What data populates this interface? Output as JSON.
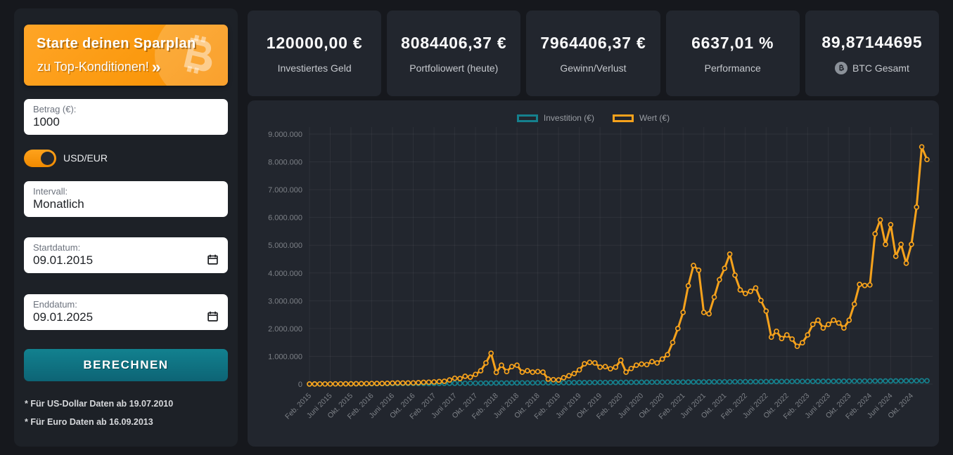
{
  "sidebar": {
    "banner": {
      "line1": "Starte deinen Sparplan",
      "line2": "zu Top-Konditionen!",
      "arrow": "»"
    },
    "amount": {
      "label": "Betrag (€):",
      "value": "1000"
    },
    "currency_toggle": {
      "label": "USD/EUR",
      "state": "EUR"
    },
    "interval": {
      "label": "Intervall:",
      "value": "Monatlich"
    },
    "start_date": {
      "label": "Startdatum:",
      "value": "09.01.2015"
    },
    "end_date": {
      "label": "Enddatum:",
      "value": "09.01.2025"
    },
    "calculate_button": "BERECHNEN",
    "footnote_usd": "* Für US-Dollar Daten ab 19.07.2010",
    "footnote_eur": "* Für Euro Daten ab 16.09.2013"
  },
  "stats": [
    {
      "value": "120000,00 €",
      "label": "Investiertes Geld"
    },
    {
      "value": "8084406,37 €",
      "label": "Portfoliowert (heute)"
    },
    {
      "value": "7964406,37 €",
      "label": "Gewinn/Verlust"
    },
    {
      "value": "6637,01 %",
      "label": "Performance"
    },
    {
      "value": "89,87144695",
      "label": "BTC Gesamt",
      "icon": "bitcoin-badge"
    }
  ],
  "colors": {
    "accent_orange": "#f6a21c",
    "accent_teal": "#15808d",
    "panel_bg": "#22262e",
    "page_bg": "#16181d"
  },
  "chart_data": {
    "type": "line",
    "title": "",
    "legend_position": "top",
    "grid": true,
    "y_max": 9000000,
    "y_tick_labels": [
      "0",
      "1.000.000",
      "2.000.000",
      "3.000.000",
      "4.000.000",
      "5.000.000",
      "6.000.000",
      "7.000.000",
      "8.000.000",
      "9.000.000"
    ],
    "x_tick_every": 4,
    "x_tick_labels": [
      "Feb. 2015",
      "Juni 2015",
      "Okt. 2015",
      "Feb. 2016",
      "Juni 2016",
      "Okt. 2016",
      "Feb. 2017",
      "Juni 2017",
      "Okt. 2017",
      "Feb. 2018",
      "Juni 2018",
      "Okt. 2018",
      "Feb. 2019",
      "Juni 2019",
      "Okt. 2019",
      "Feb. 2020",
      "Juni 2020",
      "Okt. 2020",
      "Feb. 2021",
      "Juni 2021",
      "Okt. 2021",
      "Feb. 2022",
      "Juni 2022",
      "Okt. 2022",
      "Feb. 2023",
      "Juni 2023",
      "Okt. 2023",
      "Feb. 2024",
      "Juni 2024",
      "Okt. 2024"
    ],
    "legend": [
      {
        "name": "Investition (€)",
        "color": "#15808d"
      },
      {
        "name": "Wert (€)",
        "color": "#f6a21c"
      }
    ],
    "series": [
      {
        "name": "Investition (€)",
        "color": "#15808d",
        "values": [
          1000,
          2000,
          3000,
          4000,
          5000,
          6000,
          7000,
          8000,
          9000,
          10000,
          11000,
          12000,
          13000,
          14000,
          15000,
          16000,
          17000,
          18000,
          19000,
          20000,
          21000,
          22000,
          23000,
          24000,
          25000,
          26000,
          27000,
          28000,
          29000,
          30000,
          31000,
          32000,
          33000,
          34000,
          35000,
          36000,
          37000,
          38000,
          39000,
          40000,
          41000,
          42000,
          43000,
          44000,
          45000,
          46000,
          47000,
          48000,
          49000,
          50000,
          51000,
          52000,
          53000,
          54000,
          55000,
          56000,
          57000,
          58000,
          59000,
          60000,
          61000,
          62000,
          63000,
          64000,
          65000,
          66000,
          67000,
          68000,
          69000,
          70000,
          71000,
          72000,
          73000,
          74000,
          75000,
          76000,
          77000,
          78000,
          79000,
          80000,
          81000,
          82000,
          83000,
          84000,
          85000,
          86000,
          87000,
          88000,
          89000,
          90000,
          91000,
          92000,
          93000,
          94000,
          95000,
          96000,
          97000,
          98000,
          99000,
          100000,
          101000,
          102000,
          103000,
          104000,
          105000,
          106000,
          107000,
          108000,
          109000,
          110000,
          111000,
          112000,
          113000,
          114000,
          115000,
          116000,
          117000,
          118000,
          119000,
          120000
        ]
      },
      {
        "name": "Wert (€)",
        "color": "#f6a21c",
        "values": [
          2000,
          3000,
          4000,
          5000,
          6000,
          7000,
          8000,
          9000,
          11000,
          13000,
          16000,
          18000,
          20000,
          22000,
          24000,
          27000,
          35000,
          40000,
          38000,
          41000,
          44000,
          50000,
          62000,
          68000,
          75000,
          90000,
          100000,
          150000,
          210000,
          200000,
          280000,
          250000,
          350000,
          480000,
          760000,
          1110000,
          420000,
          680000,
          450000,
          630000,
          680000,
          430000,
          480000,
          430000,
          450000,
          430000,
          180000,
          160000,
          150000,
          230000,
          300000,
          380000,
          510000,
          730000,
          780000,
          760000,
          610000,
          630000,
          550000,
          610000,
          860000,
          430000,
          560000,
          680000,
          720000,
          700000,
          810000,
          760000,
          900000,
          1060000,
          1500000,
          2000000,
          2580000,
          3540000,
          4270000,
          4100000,
          2580000,
          2530000,
          3130000,
          3760000,
          4170000,
          4680000,
          3920000,
          3390000,
          3260000,
          3340000,
          3460000,
          3010000,
          2630000,
          1690000,
          1900000,
          1640000,
          1770000,
          1620000,
          1360000,
          1490000,
          1770000,
          2150000,
          2300000,
          2020000,
          2150000,
          2300000,
          2200000,
          2020000,
          2300000,
          2880000,
          3590000,
          3550000,
          3570000,
          5410000,
          5910000,
          5030000,
          5740000,
          4600000,
          5030000,
          4350000,
          5030000,
          6370000,
          8540000,
          8084406.37
        ]
      }
    ]
  }
}
